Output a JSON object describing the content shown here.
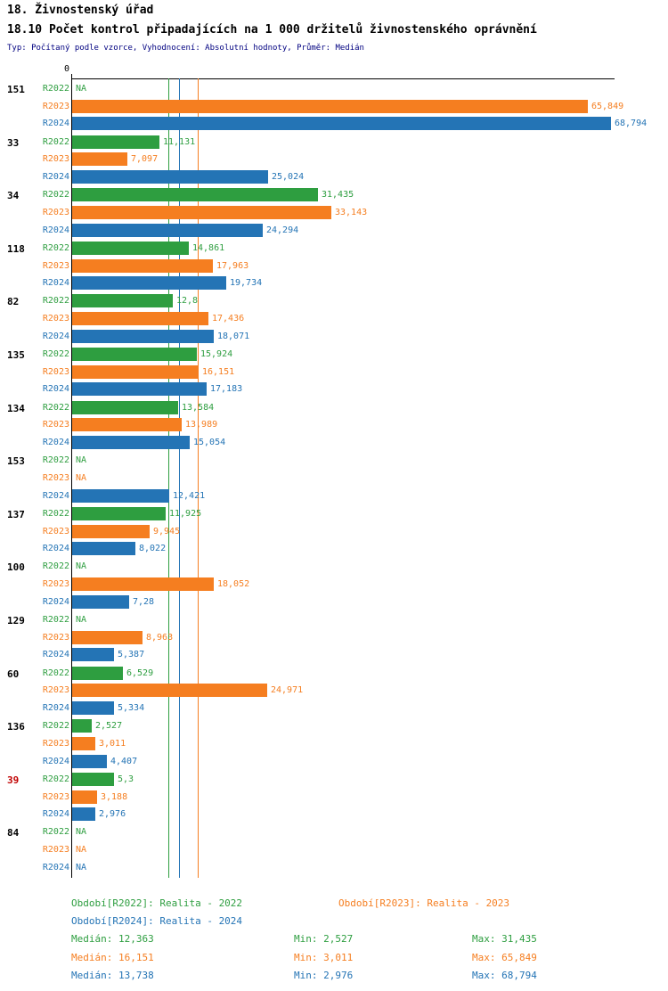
{
  "header": {
    "title": "18. Živnostenský úřad",
    "subtitle": "18.10 Počet kontrol připadajících na 1 000 držitelů živnostenského oprávnění",
    "meta": "Typ: Počítaný podle vzorce, Vyhodnocení: Absolutní hodnoty, Průměr: Medián"
  },
  "chart_data": {
    "type": "bar",
    "orientation": "horizontal",
    "title": "18.10 Počet kontrol připadajících na 1 000 držitelů živnostenského oprávnění",
    "value_axis": {
      "zero_label": "0",
      "min": 0,
      "max": 69.4,
      "position": "top",
      "gridlines": false
    },
    "series_labels": [
      "R2022",
      "R2023",
      "R2024"
    ],
    "colors": {
      "R2022": "#2e9e40",
      "R2023": "#f57e20",
      "R2024": "#2474b5"
    },
    "medians": [
      {
        "series": "R2022",
        "value": 12.363
      },
      {
        "series": "R2024",
        "value": 13.738
      },
      {
        "series": "R2023",
        "value": 16.151
      }
    ],
    "groups": [
      {
        "label": "151",
        "label_color": "#000000",
        "values": [
          null,
          65.849,
          68.794
        ],
        "value_labels": [
          "NA",
          "65,849",
          "68,794"
        ]
      },
      {
        "label": "33",
        "label_color": "#000000",
        "values": [
          11.131,
          7.097,
          25.024
        ],
        "value_labels": [
          "11,131",
          "7,097",
          "25,024"
        ]
      },
      {
        "label": "34",
        "label_color": "#000000",
        "values": [
          31.435,
          33.143,
          24.294
        ],
        "value_labels": [
          "31,435",
          "33,143",
          "24,294"
        ]
      },
      {
        "label": "118",
        "label_color": "#000000",
        "values": [
          14.861,
          17.963,
          19.734
        ],
        "value_labels": [
          "14,861",
          "17,963",
          "19,734"
        ]
      },
      {
        "label": "82",
        "label_color": "#000000",
        "values": [
          12.8,
          17.436,
          18.071
        ],
        "value_labels": [
          "12,8",
          "17,436",
          "18,071"
        ]
      },
      {
        "label": "135",
        "label_color": "#000000",
        "values": [
          15.924,
          16.151,
          17.183
        ],
        "value_labels": [
          "15,924",
          "16,151",
          "17,183"
        ]
      },
      {
        "label": "134",
        "label_color": "#000000",
        "values": [
          13.584,
          13.989,
          15.054
        ],
        "value_labels": [
          "13,584",
          "13,989",
          "15,054"
        ]
      },
      {
        "label": "153",
        "label_color": "#000000",
        "values": [
          null,
          null,
          12.421
        ],
        "value_labels": [
          "NA",
          "NA",
          "12,421"
        ]
      },
      {
        "label": "137",
        "label_color": "#000000",
        "values": [
          11.925,
          9.945,
          8.022
        ],
        "value_labels": [
          "11,925",
          "9,945",
          "8,022"
        ]
      },
      {
        "label": "100",
        "label_color": "#000000",
        "values": [
          null,
          18.052,
          7.28
        ],
        "value_labels": [
          "NA",
          "18,052",
          "7,28"
        ]
      },
      {
        "label": "129",
        "label_color": "#000000",
        "values": [
          null,
          8.963,
          5.387
        ],
        "value_labels": [
          "NA",
          "8,963",
          "5,387"
        ]
      },
      {
        "label": "60",
        "label_color": "#000000",
        "values": [
          6.529,
          24.971,
          5.334
        ],
        "value_labels": [
          "6,529",
          "24,971",
          "5,334"
        ]
      },
      {
        "label": "136",
        "label_color": "#000000",
        "values": [
          2.527,
          3.011,
          4.407
        ],
        "value_labels": [
          "2,527",
          "3,011",
          "4,407"
        ]
      },
      {
        "label": "39",
        "label_color": "#c00000",
        "values": [
          5.3,
          3.188,
          2.976
        ],
        "value_labels": [
          "5,3",
          "3,188",
          "2,976"
        ]
      },
      {
        "label": "84",
        "label_color": "#000000",
        "values": [
          null,
          null,
          null
        ],
        "value_labels": [
          "NA",
          "NA",
          "NA"
        ]
      }
    ]
  },
  "legend": {
    "r2022": "Období[R2022]: Realita - 2022",
    "r2023": "Období[R2023]: Realita - 2023",
    "r2024": "Období[R2024]: Realita - 2024"
  },
  "stats": {
    "r2022": {
      "median": "Medián: 12,363",
      "min": "Min: 2,527",
      "max": "Max: 31,435"
    },
    "r2023": {
      "median": "Medián: 16,151",
      "min": "Min: 3,011",
      "max": "Max: 65,849"
    },
    "r2024": {
      "median": "Medián: 13,738",
      "min": "Min: 2,976",
      "max": "Max: 68,794"
    }
  }
}
